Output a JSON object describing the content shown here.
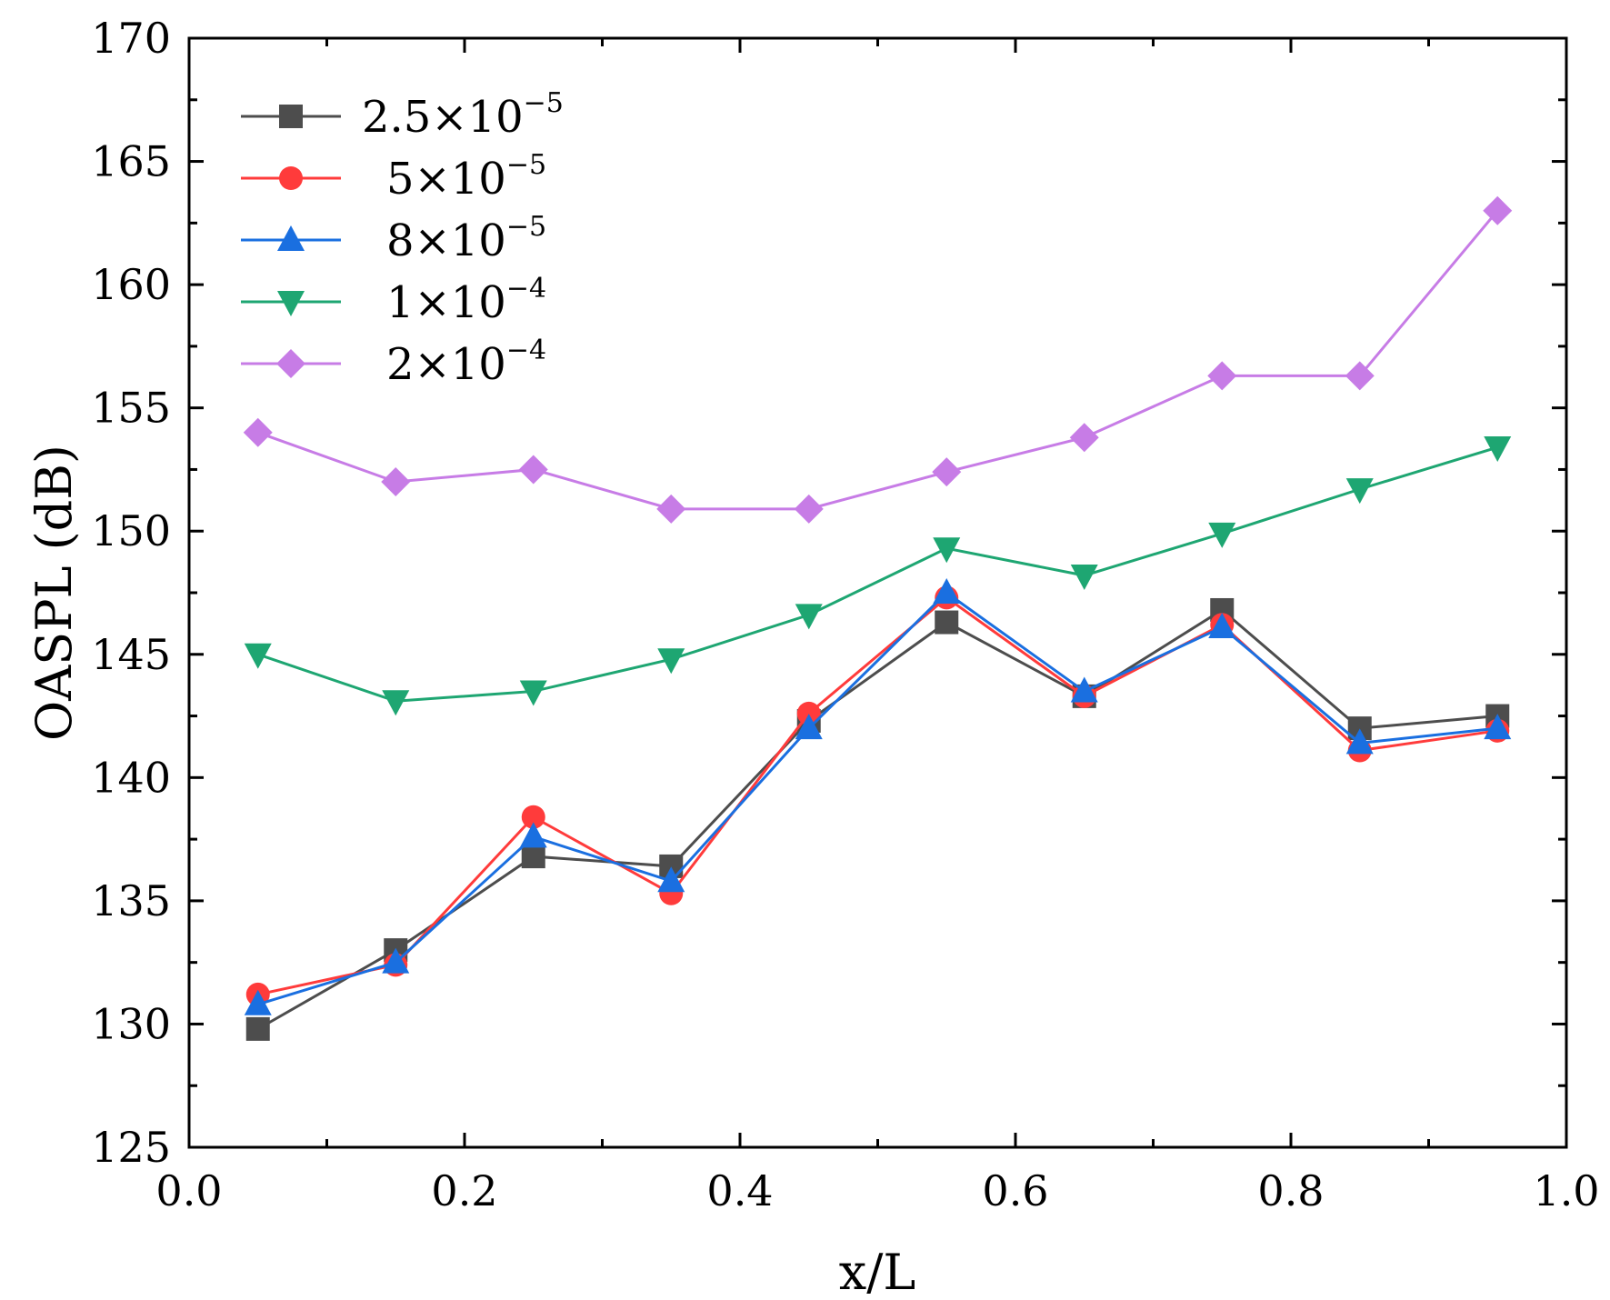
{
  "chart_data": {
    "type": "line",
    "title": "",
    "xlabel": "x/L",
    "ylabel": "OASPL (dB)",
    "xlim": [
      0.0,
      1.0
    ],
    "ylim": [
      125,
      170
    ],
    "x_ticks": [
      "0.0",
      "0.2",
      "0.4",
      "0.6",
      "0.8",
      "1.0"
    ],
    "x_tick_values": [
      0.0,
      0.2,
      0.4,
      0.6,
      0.8,
      1.0
    ],
    "y_ticks": [
      "125",
      "130",
      "135",
      "140",
      "145",
      "150",
      "155",
      "160",
      "165",
      "170"
    ],
    "y_tick_values": [
      125,
      130,
      135,
      140,
      145,
      150,
      155,
      160,
      165,
      170
    ],
    "grid": false,
    "legend_position": "top-left",
    "x": [
      0.05,
      0.15,
      0.25,
      0.35,
      0.45,
      0.55,
      0.65,
      0.75,
      0.85,
      0.95
    ],
    "series": [
      {
        "name": "2.5×10⁻⁵",
        "mantissa": "2.5×10",
        "exponent": "−5",
        "color": "#4d4d4d",
        "marker": "square",
        "values": [
          129.8,
          133.0,
          136.8,
          136.4,
          142.3,
          146.3,
          143.3,
          146.8,
          142.0,
          142.5
        ]
      },
      {
        "name": "5×10⁻⁵",
        "mantissa": "5×10",
        "exponent": "−5",
        "color": "#ff3b3b",
        "marker": "circle",
        "values": [
          131.2,
          132.4,
          138.4,
          135.3,
          142.6,
          147.3,
          143.3,
          146.2,
          141.1,
          141.9
        ]
      },
      {
        "name": "8×10⁻⁵",
        "mantissa": "8×10",
        "exponent": "−5",
        "color": "#1a6fe0",
        "marker": "triangle-up",
        "values": [
          130.8,
          132.5,
          137.6,
          135.8,
          142.0,
          147.5,
          143.5,
          146.1,
          141.4,
          142.0
        ]
      },
      {
        "name": "1×10⁻⁴",
        "mantissa": "1×10",
        "exponent": "−4",
        "color": "#1ea672",
        "marker": "triangle-down",
        "values": [
          145.0,
          143.1,
          143.5,
          144.8,
          146.6,
          149.3,
          148.2,
          149.9,
          151.7,
          153.4
        ]
      },
      {
        "name": "2×10⁻⁴",
        "mantissa": "2×10",
        "exponent": "−4",
        "color": "#c77ce6",
        "marker": "diamond",
        "values": [
          154.0,
          152.0,
          152.5,
          150.9,
          150.9,
          152.4,
          153.8,
          156.3,
          156.3,
          163.0
        ]
      }
    ]
  }
}
